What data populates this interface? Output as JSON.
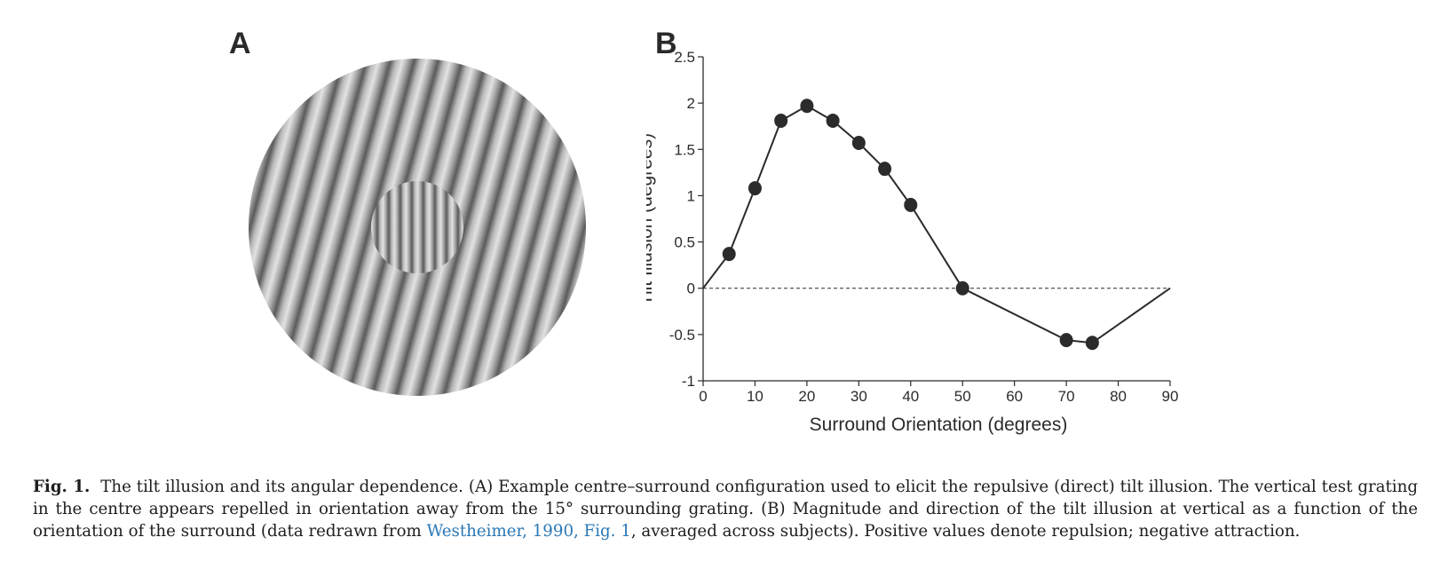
{
  "panels": {
    "a_label": "A",
    "b_label": "B"
  },
  "chart_data": {
    "type": "line",
    "xlabel": "Surround Orientation (degrees)",
    "ylabel": "Tilt Illusion (degrees)",
    "xlim": [
      0,
      90
    ],
    "ylim": [
      -1,
      2.5
    ],
    "xticks": [
      "0",
      "10",
      "20",
      "30",
      "40",
      "50",
      "60",
      "70",
      "80",
      "90"
    ],
    "yticks": [
      "2.5",
      "2",
      "1.5",
      "1",
      "0.5",
      "0",
      "-0.5",
      "-1"
    ],
    "xtick_values": [
      0,
      10,
      20,
      30,
      40,
      50,
      60,
      70,
      80,
      90
    ],
    "ytick_values": [
      2.5,
      2,
      1.5,
      1,
      0.5,
      0,
      -0.5,
      -1
    ],
    "line": {
      "x": [
        0,
        5,
        10,
        15,
        20,
        25,
        30,
        35,
        40,
        50,
        70,
        75,
        90
      ],
      "y": [
        0,
        0.37,
        1.08,
        1.81,
        1.97,
        1.81,
        1.57,
        1.29,
        0.9,
        0,
        -0.56,
        -0.59,
        0
      ]
    },
    "markers": {
      "x": [
        5,
        10,
        15,
        20,
        25,
        30,
        35,
        40,
        50,
        70,
        75
      ],
      "y": [
        0.37,
        1.08,
        1.81,
        1.97,
        1.81,
        1.57,
        1.29,
        0.9,
        0,
        -0.56,
        -0.59
      ]
    },
    "reference_line": {
      "y": 0,
      "style": "dashed"
    },
    "grid": false,
    "line_color": "#2b2b2b"
  },
  "caption": {
    "fig_label": "Fig. 1.",
    "text_before_cite": "The tilt illusion and its angular dependence. (A) Example centre–surround configuration used to elicit the repulsive (direct) tilt illusion. The vertical test grating in the centre appears repelled in orientation away from the 15° surrounding grating. (B) Magnitude and direction of the tilt illusion at vertical as a function of the orientation of the surround (data redrawn from",
    "citation": "Westheimer, 1990, Fig. 1",
    "text_after_cite": ", averaged across subjects). Positive values denote repulsion; negative attraction."
  }
}
